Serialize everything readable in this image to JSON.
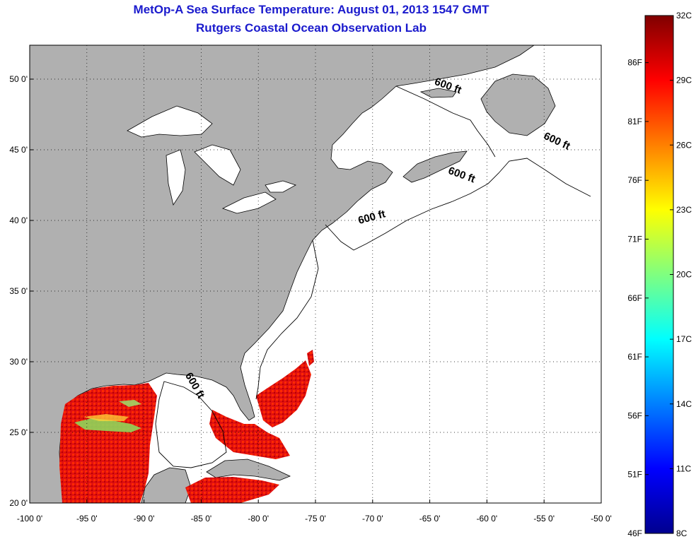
{
  "title": {
    "line1": "MetOp-A Sea Surface Temperature:  August 01, 2013 1547 GMT",
    "line2": "Rutgers Coastal Ocean Observation Lab"
  },
  "map": {
    "lon_range": [
      -100,
      -50
    ],
    "lat_range": [
      20,
      52.4
    ],
    "lon_ticks": [
      {
        "value": -100,
        "label": "-100 0'"
      },
      {
        "value": -95,
        "label": "-95 0'"
      },
      {
        "value": -90,
        "label": "-90 0'"
      },
      {
        "value": -85,
        "label": "-85 0'"
      },
      {
        "value": -80,
        "label": "-80 0'"
      },
      {
        "value": -75,
        "label": "-75 0'"
      },
      {
        "value": -70,
        "label": "-70 0'"
      },
      {
        "value": -65,
        "label": "-65 0'"
      },
      {
        "value": -60,
        "label": "-60 0'"
      },
      {
        "value": -55,
        "label": "-55 0'"
      },
      {
        "value": -50,
        "label": "-50 0'"
      }
    ],
    "lat_ticks": [
      {
        "value": 20,
        "label": "20 0'"
      },
      {
        "value": 25,
        "label": "25 0'"
      },
      {
        "value": 30,
        "label": "30 0'"
      },
      {
        "value": 35,
        "label": "35 0'"
      },
      {
        "value": 40,
        "label": "40 0'"
      },
      {
        "value": 45,
        "label": "45 0'"
      },
      {
        "value": 50,
        "label": "50 0'"
      }
    ],
    "isobath_label": "600 ft",
    "isobath_labels": [
      {
        "lon": -63.5,
        "lat": 49.3,
        "text": "600 ft"
      },
      {
        "lon": -54.0,
        "lat": 45.4,
        "text": "600 ft"
      },
      {
        "lon": -62.3,
        "lat": 43.0,
        "text": "600 ft"
      },
      {
        "lon": -70.0,
        "lat": 40.0,
        "text": "600 ft"
      },
      {
        "lon": -85.8,
        "lat": 28.2,
        "text": "600 ft"
      }
    ],
    "colors": {
      "land": "#b0b0b0",
      "ocean": "#ffffff",
      "coast": "#000000"
    }
  },
  "colorbar": {
    "celsius_range": [
      8,
      32
    ],
    "fahrenheit_range": [
      46,
      90
    ],
    "celsius_labels": [
      {
        "value": 32,
        "label": "32C"
      },
      {
        "value": 29,
        "label": "29C"
      },
      {
        "value": 26,
        "label": "26C"
      },
      {
        "value": 23,
        "label": "23C"
      },
      {
        "value": 20,
        "label": "20C"
      },
      {
        "value": 17,
        "label": "17C"
      },
      {
        "value": 14,
        "label": "14C"
      },
      {
        "value": 11,
        "label": "11C"
      },
      {
        "value": 8,
        "label": "8C"
      }
    ],
    "fahrenheit_labels": [
      {
        "value": 86,
        "label": "86F"
      },
      {
        "value": 81,
        "label": "81F"
      },
      {
        "value": 76,
        "label": "76F"
      },
      {
        "value": 71,
        "label": "71F"
      },
      {
        "value": 66,
        "label": "66F"
      },
      {
        "value": 61,
        "label": "61F"
      },
      {
        "value": 56,
        "label": "56F"
      },
      {
        "value": 51,
        "label": "51F"
      },
      {
        "value": 46,
        "label": "46F"
      }
    ],
    "colormap": "jet"
  }
}
